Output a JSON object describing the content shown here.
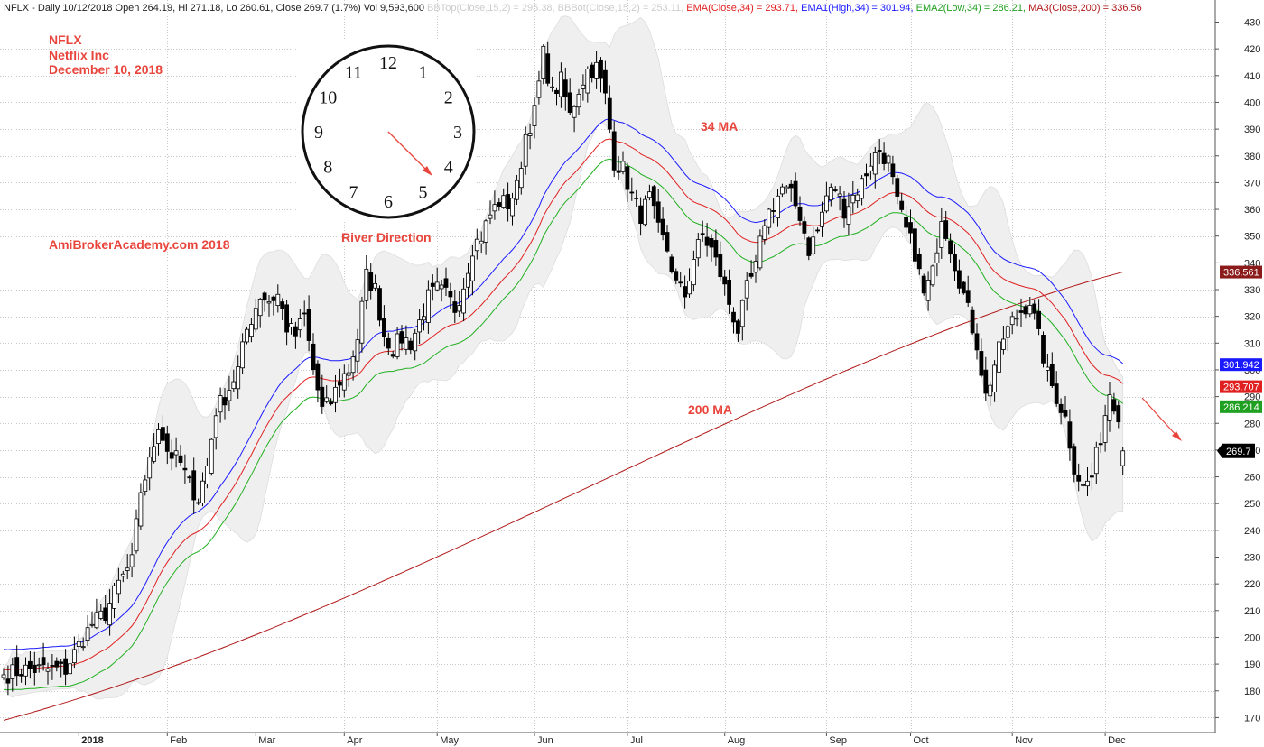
{
  "header": {
    "main": "NFLX - Daily 10/12/2018 Open 264.19, Hi 271.18, Lo 260.61, Close 269.7 (1.7%) Vol 9,593,600",
    "bbtop": "BBTop(Close,15,2) = 295.38,",
    "bbbot": "BBBot(Close,15,2) = 253.11,",
    "ema34": "EMA(Close,34) = 293.71,",
    "ema1": "EMA1(High,34) = 301.94,",
    "ema2": "EMA2(Low,34) = 286.21,",
    "ma200": "MA3(Close,200) = 336.56"
  },
  "notes": {
    "ticker": "NFLX",
    "company": "Netflix Inc",
    "date": "December 10, 2018",
    "site": "AmiBrokerAcademy.com  2018",
    "river": "River Direction",
    "ma34": "34 MA",
    "ma200": "200 MA"
  },
  "clock": {
    "numbers": [
      "12",
      "1",
      "2",
      "3",
      "4",
      "5",
      "6",
      "7",
      "8",
      "9",
      "10",
      "11"
    ]
  },
  "colors": {
    "candle": "#000000",
    "band_fill": "#efefef",
    "ema_high": "#1a1aff",
    "ema_close": "#e02020",
    "ema_low": "#20b020",
    "ma200": "#b01818",
    "annotation": "#e8453c",
    "grid": "#c8c8c8"
  },
  "chart_data": {
    "type": "candlestick",
    "title": "NFLX - Daily 10/12/2018",
    "ylim": [
      165,
      433
    ],
    "y_ticks": [
      170,
      180,
      190,
      200,
      210,
      220,
      230,
      240,
      250,
      260,
      270,
      280,
      290,
      300,
      310,
      320,
      330,
      340,
      350,
      360,
      370,
      380,
      390,
      400,
      410,
      420,
      430
    ],
    "x_labels": [
      "2018",
      "Feb",
      "Mar",
      "Apr",
      "May",
      "Jun",
      "Jul",
      "Aug",
      "Sep",
      "Oct",
      "Nov",
      "Dec"
    ],
    "grid": true,
    "last_price": 269.7,
    "value_tags": [
      {
        "label": "336.561",
        "value": 336.56,
        "color": "#8b1a1a"
      },
      {
        "label": "301.942",
        "value": 301.94,
        "color": "#1a1aff"
      },
      {
        "label": "293.707",
        "value": 293.71,
        "color": "#e02020"
      },
      {
        "label": "286.214",
        "value": 286.21,
        "color": "#20a020"
      },
      {
        "label": "269.7",
        "value": 269.7,
        "color": "#000000"
      }
    ],
    "close_anchors": [
      [
        0,
        186
      ],
      [
        5,
        188
      ],
      [
        10,
        188
      ],
      [
        14,
        188
      ],
      [
        17,
        197
      ],
      [
        20,
        205
      ],
      [
        23,
        209
      ],
      [
        26,
        220
      ],
      [
        29,
        228
      ],
      [
        31,
        255
      ],
      [
        33,
        265
      ],
      [
        35,
        280
      ],
      [
        37,
        270
      ],
      [
        40,
        265
      ],
      [
        42,
        257
      ],
      [
        44,
        252
      ],
      [
        46,
        264
      ],
      [
        48,
        285
      ],
      [
        50,
        290
      ],
      [
        53,
        300
      ],
      [
        55,
        315
      ],
      [
        58,
        328
      ],
      [
        60,
        326
      ],
      [
        62,
        328
      ],
      [
        64,
        316
      ],
      [
        66,
        313
      ],
      [
        68,
        320
      ],
      [
        70,
        300
      ],
      [
        72,
        285
      ],
      [
        74,
        288
      ],
      [
        76,
        296
      ],
      [
        78,
        300
      ],
      [
        80,
        312
      ],
      [
        82,
        335
      ],
      [
        84,
        330
      ],
      [
        86,
        313
      ],
      [
        88,
        308
      ],
      [
        90,
        312
      ],
      [
        92,
        310
      ],
      [
        94,
        318
      ],
      [
        96,
        327
      ],
      [
        98,
        330
      ],
      [
        100,
        328
      ],
      [
        102,
        323
      ],
      [
        104,
        332
      ],
      [
        106,
        346
      ],
      [
        108,
        350
      ],
      [
        110,
        358
      ],
      [
        112,
        363
      ],
      [
        114,
        362
      ],
      [
        116,
        368
      ],
      [
        118,
        388
      ],
      [
        120,
        396
      ],
      [
        122,
        418
      ],
      [
        124,
        403
      ],
      [
        126,
        408
      ],
      [
        128,
        395
      ],
      [
        130,
        405
      ],
      [
        132,
        412
      ],
      [
        134,
        413
      ],
      [
        136,
        402
      ],
      [
        138,
        378
      ],
      [
        140,
        375
      ],
      [
        142,
        365
      ],
      [
        144,
        358
      ],
      [
        146,
        364
      ],
      [
        148,
        352
      ],
      [
        150,
        345
      ],
      [
        152,
        332
      ],
      [
        154,
        328
      ],
      [
        156,
        342
      ],
      [
        158,
        350
      ],
      [
        160,
        345
      ],
      [
        162,
        336
      ],
      [
        164,
        325
      ],
      [
        166,
        315
      ],
      [
        168,
        330
      ],
      [
        170,
        338
      ],
      [
        172,
        356
      ],
      [
        174,
        362
      ],
      [
        176,
        368
      ],
      [
        178,
        365
      ],
      [
        180,
        358
      ],
      [
        182,
        345
      ],
      [
        184,
        352
      ],
      [
        186,
        365
      ],
      [
        188,
        368
      ],
      [
        190,
        360
      ],
      [
        192,
        365
      ],
      [
        194,
        370
      ],
      [
        196,
        378
      ],
      [
        198,
        382
      ],
      [
        200,
        378
      ],
      [
        202,
        362
      ],
      [
        204,
        352
      ],
      [
        206,
        344
      ],
      [
        208,
        328
      ],
      [
        210,
        336
      ],
      [
        212,
        358
      ],
      [
        214,
        346
      ],
      [
        216,
        334
      ],
      [
        218,
        322
      ],
      [
        220,
        310
      ],
      [
        222,
        290
      ],
      [
        224,
        302
      ],
      [
        226,
        312
      ],
      [
        228,
        318
      ],
      [
        230,
        322
      ],
      [
        232,
        326
      ],
      [
        234,
        312
      ],
      [
        236,
        298
      ],
      [
        238,
        290
      ],
      [
        240,
        282
      ],
      [
        242,
        264
      ],
      [
        244,
        256
      ],
      [
        246,
        260
      ],
      [
        248,
        275
      ],
      [
        250,
        292
      ],
      [
        252,
        284
      ],
      [
        253,
        269.7
      ]
    ]
  }
}
